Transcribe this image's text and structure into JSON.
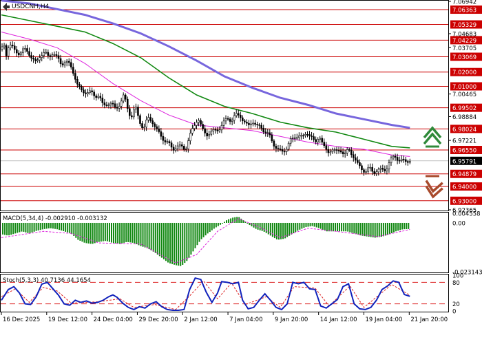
{
  "header": {
    "symbol_title": "USDCNH,H4"
  },
  "colors": {
    "axis_label_bg": "#cc0000",
    "level_line": "#cc0000",
    "current_bg": "#000000",
    "ma_fast": "#dd22dd",
    "ma_mid": "#118811",
    "ma_slow": "#7766dd",
    "macd_hist": "#118811",
    "macd_signal": "#dd22dd",
    "stoch_main": "#1122bb",
    "stoch_signal": "#dd2222",
    "arrow_up": "#2f8a3a",
    "arrow_down": "#a84a2c"
  },
  "icons": {
    "up_arrow": "double-chevron-up-arrow",
    "down_arrow": "double-chevron-down-arrow"
  },
  "chart_data": [
    {
      "type": "candlestick",
      "title": "USDCNH,H4",
      "ylim": [
        6.92365,
        7.06942
      ],
      "grid": false,
      "level_labels": [
        "7.06363",
        "7.05329",
        "7.04229",
        "7.03069",
        "7.02000",
        "7.01000",
        "6.99502",
        "6.98024",
        "6.96550",
        "6.94879",
        "6.94000",
        "6.93000"
      ],
      "axis_labels": [
        "7.06942",
        "7.04683",
        "7.03705",
        "7.00465",
        "6.98884",
        "6.97221",
        "6.92365"
      ],
      "current_price": "6.95791",
      "x_tick_labels": [
        "16 Dec 2025",
        "19 Dec 12:00",
        "24 Dec 04:00",
        "29 Dec 20:00",
        "2 Jan 12:00",
        "7 Jan 04:00",
        "9 Jan 20:00",
        "14 Jan 12:00",
        "19 Jan 04:00",
        "21 Jan 20:00"
      ],
      "close_path": [
        [
          0,
          7.036
        ],
        [
          4,
          7.038
        ],
        [
          7,
          7.032
        ],
        [
          11,
          7.04
        ],
        [
          15,
          7.038
        ],
        [
          20,
          7.034
        ],
        [
          26,
          7.033
        ],
        [
          32,
          7.036
        ],
        [
          38,
          7.034
        ],
        [
          44,
          7.03
        ],
        [
          50,
          7.026
        ],
        [
          56,
          7.032
        ],
        [
          62,
          7.034
        ],
        [
          68,
          7.03
        ],
        [
          74,
          7.034
        ],
        [
          80,
          7.03
        ],
        [
          86,
          7.025
        ],
        [
          92,
          7.028
        ],
        [
          98,
          7.025
        ],
        [
          104,
          7.019
        ],
        [
          110,
          7.01
        ],
        [
          116,
          7.006
        ],
        [
          122,
          7.006
        ],
        [
          128,
          7.006
        ],
        [
          134,
          7.003
        ],
        [
          140,
          7.004
        ],
        [
          146,
          6.996
        ],
        [
          152,
          6.998
        ],
        [
          158,
          6.998
        ],
        [
          164,
          6.994
        ],
        [
          170,
          6.998
        ],
        [
          176,
          7.004
        ],
        [
          180,
          6.996
        ],
        [
          186,
          6.988
        ],
        [
          192,
          6.996
        ],
        [
          198,
          6.986
        ],
        [
          204,
          6.98
        ],
        [
          210,
          6.988
        ],
        [
          216,
          6.986
        ],
        [
          222,
          6.98
        ],
        [
          228,
          6.976
        ],
        [
          234,
          6.972
        ],
        [
          240,
          6.97
        ],
        [
          246,
          6.966
        ],
        [
          252,
          6.968
        ],
        [
          258,
          6.968
        ],
        [
          264,
          6.966
        ],
        [
          270,
          6.975
        ],
        [
          276,
          6.982
        ],
        [
          282,
          6.988
        ],
        [
          288,
          6.98
        ],
        [
          294,
          6.976
        ],
        [
          300,
          6.978
        ],
        [
          306,
          6.979
        ],
        [
          312,
          6.98
        ],
        [
          318,
          6.984
        ],
        [
          324,
          6.988
        ],
        [
          330,
          6.986
        ],
        [
          336,
          6.99
        ],
        [
          342,
          6.99
        ],
        [
          348,
          6.985
        ],
        [
          354,
          6.982
        ],
        [
          360,
          6.986
        ],
        [
          366,
          6.982
        ],
        [
          372,
          6.982
        ],
        [
          378,
          6.978
        ],
        [
          384,
          6.976
        ],
        [
          390,
          6.97
        ],
        [
          396,
          6.966
        ],
        [
          402,
          6.964
        ],
        [
          408,
          6.966
        ],
        [
          414,
          6.972
        ],
        [
          420,
          6.974
        ],
        [
          426,
          6.976
        ],
        [
          432,
          6.974
        ],
        [
          438,
          6.978
        ],
        [
          444,
          6.975
        ],
        [
          450,
          6.97
        ],
        [
          456,
          6.976
        ],
        [
          462,
          6.968
        ],
        [
          468,
          6.964
        ],
        [
          474,
          6.966
        ],
        [
          480,
          6.964
        ],
        [
          486,
          6.966
        ],
        [
          492,
          6.962
        ],
        [
          498,
          6.966
        ],
        [
          504,
          6.962
        ],
        [
          510,
          6.956
        ],
        [
          516,
          6.953
        ],
        [
          522,
          6.95
        ],
        [
          528,
          6.953
        ],
        [
          534,
          6.95
        ],
        [
          540,
          6.951
        ],
        [
          546,
          6.952
        ],
        [
          552,
          6.952
        ],
        [
          558,
          6.958
        ],
        [
          564,
          6.962
        ],
        [
          570,
          6.958
        ],
        [
          576,
          6.958
        ],
        [
          582,
          6.958
        ],
        [
          586,
          6.958
        ]
      ],
      "ma_fast_path": [
        [
          0,
          7.048
        ],
        [
          40,
          7.043
        ],
        [
          80,
          7.037
        ],
        [
          120,
          7.026
        ],
        [
          160,
          7.012
        ],
        [
          200,
          7.0
        ],
        [
          240,
          6.99
        ],
        [
          280,
          6.983
        ],
        [
          320,
          6.981
        ],
        [
          360,
          6.979
        ],
        [
          400,
          6.975
        ],
        [
          440,
          6.971
        ],
        [
          480,
          6.968
        ],
        [
          520,
          6.966
        ],
        [
          560,
          6.962
        ],
        [
          586,
          6.961
        ]
      ],
      "ma_mid_path": [
        [
          0,
          7.06
        ],
        [
          40,
          7.056
        ],
        [
          80,
          7.052
        ],
        [
          120,
          7.048
        ],
        [
          160,
          7.04
        ],
        [
          200,
          7.03
        ],
        [
          240,
          7.016
        ],
        [
          280,
          7.004
        ],
        [
          320,
          6.996
        ],
        [
          360,
          6.991
        ],
        [
          400,
          6.985
        ],
        [
          440,
          6.981
        ],
        [
          480,
          6.978
        ],
        [
          520,
          6.973
        ],
        [
          560,
          6.968
        ],
        [
          586,
          6.967
        ]
      ],
      "ma_slow_path": [
        [
          0,
          7.07
        ],
        [
          40,
          7.068
        ],
        [
          80,
          7.064
        ],
        [
          120,
          7.06
        ],
        [
          160,
          7.054
        ],
        [
          200,
          7.047
        ],
        [
          240,
          7.038
        ],
        [
          280,
          7.028
        ],
        [
          320,
          7.017
        ],
        [
          360,
          7.009
        ],
        [
          400,
          7.002
        ],
        [
          440,
          6.997
        ],
        [
          480,
          6.991
        ],
        [
          520,
          6.987
        ],
        [
          560,
          6.983
        ],
        [
          586,
          6.981
        ]
      ]
    },
    {
      "type": "bar",
      "title": "MACD(5,34,4) -0.002910 -0.003132",
      "ylim": [
        -0.023143,
        0.004558
      ],
      "axis_labels": [
        "0.004558",
        "0.00",
        "-0.023143"
      ],
      "histogram": [
        [
          2,
          -0.0055
        ],
        [
          10,
          -0.006
        ],
        [
          20,
          -0.005
        ],
        [
          30,
          -0.004
        ],
        [
          40,
          -0.005
        ],
        [
          50,
          -0.0038
        ],
        [
          60,
          -0.003
        ],
        [
          70,
          -0.0025
        ],
        [
          80,
          -0.003
        ],
        [
          90,
          -0.004
        ],
        [
          100,
          -0.005
        ],
        [
          110,
          -0.008
        ],
        [
          120,
          -0.0095
        ],
        [
          130,
          -0.01
        ],
        [
          140,
          -0.009
        ],
        [
          150,
          -0.0085
        ],
        [
          160,
          -0.0095
        ],
        [
          170,
          -0.01
        ],
        [
          180,
          -0.009
        ],
        [
          190,
          -0.0095
        ],
        [
          200,
          -0.011
        ],
        [
          210,
          -0.012
        ],
        [
          220,
          -0.014
        ],
        [
          230,
          -0.0165
        ],
        [
          240,
          -0.019
        ],
        [
          250,
          -0.02
        ],
        [
          258,
          -0.0205
        ],
        [
          266,
          -0.018
        ],
        [
          276,
          -0.013
        ],
        [
          286,
          -0.008
        ],
        [
          296,
          -0.005
        ],
        [
          306,
          -0.0025
        ],
        [
          316,
          -0.0005
        ],
        [
          324,
          0.0015
        ],
        [
          332,
          0.0025
        ],
        [
          340,
          0.003
        ],
        [
          348,
          0.001
        ],
        [
          356,
          -0.001
        ],
        [
          366,
          -0.003
        ],
        [
          376,
          -0.004
        ],
        [
          386,
          -0.006
        ],
        [
          396,
          -0.008
        ],
        [
          406,
          -0.0075
        ],
        [
          416,
          -0.0055
        ],
        [
          426,
          -0.0035
        ],
        [
          436,
          -0.002
        ],
        [
          446,
          -0.0015
        ],
        [
          456,
          -0.0025
        ],
        [
          466,
          -0.004
        ],
        [
          476,
          -0.004
        ],
        [
          486,
          -0.004
        ],
        [
          496,
          -0.004
        ],
        [
          506,
          -0.005
        ],
        [
          516,
          -0.006
        ],
        [
          526,
          -0.0065
        ],
        [
          536,
          -0.007
        ],
        [
          546,
          -0.0065
        ],
        [
          556,
          -0.0055
        ],
        [
          566,
          -0.004
        ],
        [
          576,
          -0.003
        ],
        [
          584,
          -0.0029
        ]
      ],
      "signal_path": [
        [
          0,
          -0.007
        ],
        [
          60,
          -0.004
        ],
        [
          100,
          -0.005
        ],
        [
          140,
          -0.0095
        ],
        [
          200,
          -0.01
        ],
        [
          250,
          -0.019
        ],
        [
          280,
          -0.015
        ],
        [
          310,
          -0.004
        ],
        [
          340,
          0.002
        ],
        [
          370,
          -0.002
        ],
        [
          400,
          -0.007
        ],
        [
          440,
          -0.0025
        ],
        [
          480,
          -0.004
        ],
        [
          540,
          -0.0065
        ],
        [
          586,
          -0.0031
        ]
      ]
    },
    {
      "type": "line",
      "title": "Stoch(5,3,3) 40.7136 44.1654",
      "ylim": [
        0,
        100
      ],
      "axis_labels": [
        "100",
        "80",
        "20",
        "0"
      ],
      "reference_levels": [
        80,
        20
      ],
      "main_path": [
        [
          0,
          30
        ],
        [
          10,
          60
        ],
        [
          18,
          68
        ],
        [
          26,
          50
        ],
        [
          34,
          20
        ],
        [
          42,
          18
        ],
        [
          50,
          40
        ],
        [
          58,
          75
        ],
        [
          66,
          80
        ],
        [
          74,
          62
        ],
        [
          82,
          44
        ],
        [
          90,
          20
        ],
        [
          98,
          16
        ],
        [
          106,
          30
        ],
        [
          114,
          24
        ],
        [
          122,
          28
        ],
        [
          130,
          22
        ],
        [
          138,
          24
        ],
        [
          146,
          30
        ],
        [
          154,
          40
        ],
        [
          160,
          45
        ],
        [
          166,
          38
        ],
        [
          174,
          22
        ],
        [
          182,
          10
        ],
        [
          190,
          4
        ],
        [
          198,
          12
        ],
        [
          206,
          8
        ],
        [
          214,
          20
        ],
        [
          222,
          26
        ],
        [
          230,
          12
        ],
        [
          238,
          4
        ],
        [
          246,
          2
        ],
        [
          254,
          2
        ],
        [
          262,
          4
        ],
        [
          270,
          60
        ],
        [
          278,
          92
        ],
        [
          286,
          88
        ],
        [
          294,
          52
        ],
        [
          302,
          24
        ],
        [
          310,
          50
        ],
        [
          316,
          82
        ],
        [
          324,
          80
        ],
        [
          332,
          76
        ],
        [
          340,
          80
        ],
        [
          346,
          30
        ],
        [
          354,
          6
        ],
        [
          362,
          10
        ],
        [
          370,
          30
        ],
        [
          378,
          48
        ],
        [
          386,
          30
        ],
        [
          394,
          10
        ],
        [
          402,
          4
        ],
        [
          410,
          20
        ],
        [
          418,
          80
        ],
        [
          426,
          76
        ],
        [
          434,
          80
        ],
        [
          442,
          62
        ],
        [
          450,
          60
        ],
        [
          458,
          14
        ],
        [
          466,
          8
        ],
        [
          474,
          20
        ],
        [
          482,
          32
        ],
        [
          490,
          68
        ],
        [
          498,
          76
        ],
        [
          506,
          20
        ],
        [
          514,
          6
        ],
        [
          522,
          4
        ],
        [
          530,
          10
        ],
        [
          538,
          30
        ],
        [
          546,
          60
        ],
        [
          554,
          70
        ],
        [
          562,
          84
        ],
        [
          570,
          80
        ],
        [
          578,
          46
        ],
        [
          586,
          41
        ]
      ],
      "signal_path": [
        [
          0,
          40
        ],
        [
          20,
          62
        ],
        [
          40,
          24
        ],
        [
          60,
          66
        ],
        [
          80,
          56
        ],
        [
          100,
          22
        ],
        [
          140,
          26
        ],
        [
          170,
          34
        ],
        [
          190,
          10
        ],
        [
          220,
          18
        ],
        [
          250,
          4
        ],
        [
          270,
          42
        ],
        [
          290,
          84
        ],
        [
          310,
          34
        ],
        [
          330,
          78
        ],
        [
          350,
          18
        ],
        [
          380,
          40
        ],
        [
          400,
          10
        ],
        [
          420,
          68
        ],
        [
          450,
          64
        ],
        [
          470,
          14
        ],
        [
          500,
          70
        ],
        [
          520,
          10
        ],
        [
          560,
          74
        ],
        [
          586,
          44
        ]
      ]
    }
  ]
}
